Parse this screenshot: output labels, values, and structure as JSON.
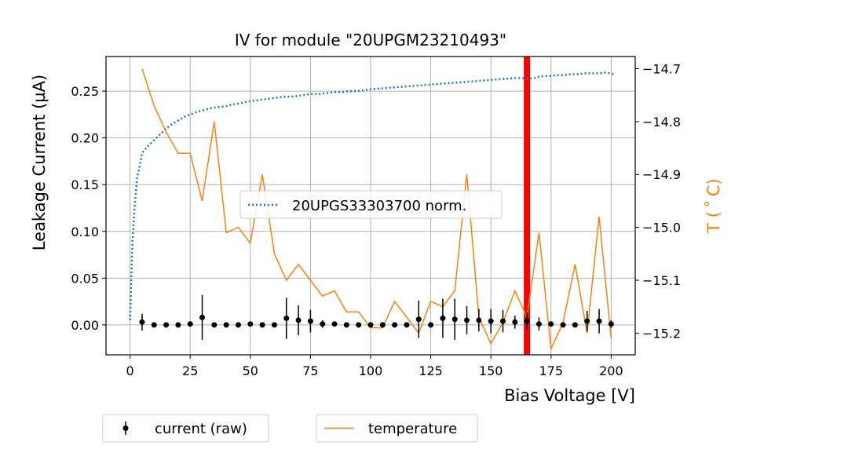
{
  "chart_data": {
    "type": "line",
    "title": "IV for module \"20UPGM23210493\"",
    "xlabel": "Bias Voltage [V]",
    "ylabel": "Leakage Current (µA)",
    "y2label": "T ($^\\circ$C)",
    "y2label_display": "T ( ˚ C)",
    "xlim": [
      -10,
      210
    ],
    "ylim": [
      -0.032,
      0.287
    ],
    "y2lim": [
      -15.241,
      -14.677
    ],
    "x_ticks": [
      0,
      25,
      50,
      75,
      100,
      125,
      150,
      175,
      200
    ],
    "x_tick_labels": [
      "0",
      "25",
      "50",
      "75",
      "100",
      "125",
      "150",
      "175",
      "200"
    ],
    "y_ticks": [
      0.0,
      0.05,
      0.1,
      0.15,
      0.2,
      0.25
    ],
    "y_tick_labels": [
      "0.00",
      "0.05",
      "0.10",
      "0.15",
      "0.20",
      "0.25"
    ],
    "y2_ticks": [
      -14.7,
      -14.8,
      -14.9,
      -15.0,
      -15.1,
      -15.2
    ],
    "y2_tick_labels": [
      "−14.7",
      "−14.8",
      "−14.9",
      "−15.0",
      "−15.1",
      "−15.2"
    ],
    "grid": true,
    "vertical_line": {
      "x": 165,
      "color": "#ff0000"
    },
    "colors": {
      "norm": "#1f77b4",
      "temperature": "#ff7f0e",
      "current": "#000000",
      "ref_line": "#ff0000",
      "y2_axis_label": "#ff7f0e"
    },
    "legends": {
      "inside": {
        "placement": "center",
        "entries": [
          {
            "label": "20UPGS33303700 norm.",
            "style": "dotted",
            "color": "#1f77b4"
          }
        ]
      },
      "below": [
        {
          "label": "current (raw)",
          "style": "errorbar-point",
          "color": "#000000"
        },
        {
          "label": "temperature",
          "style": "line",
          "color": "#ff7f0e"
        }
      ]
    },
    "series": [
      {
        "name": "20UPGS33303700 norm.",
        "axis": "left",
        "style": "dotted",
        "x": [
          0,
          1,
          2,
          3,
          4,
          5,
          7,
          9,
          11,
          13,
          15,
          17,
          19,
          21,
          23,
          25,
          28,
          31,
          34,
          37,
          40,
          43,
          46,
          49,
          52,
          55,
          58,
          61,
          64,
          67,
          70,
          73,
          76,
          79,
          82,
          85,
          88,
          91,
          94,
          97,
          100,
          105,
          110,
          115,
          120,
          125,
          130,
          135,
          140,
          145,
          150,
          155,
          160,
          163,
          165,
          168,
          171,
          174,
          177,
          180,
          183,
          186,
          189,
          192,
          195,
          198,
          201
        ],
        "y": [
          0.005,
          0.09,
          0.13,
          0.158,
          0.17,
          0.184,
          0.19,
          0.195,
          0.2,
          0.205,
          0.21,
          0.214,
          0.217,
          0.22,
          0.223,
          0.225,
          0.228,
          0.23,
          0.232,
          0.233,
          0.234,
          0.236,
          0.237,
          0.239,
          0.24,
          0.241,
          0.242,
          0.243,
          0.244,
          0.244,
          0.245,
          0.246,
          0.247,
          0.247,
          0.248,
          0.249,
          0.249,
          0.25,
          0.25,
          0.251,
          0.252,
          0.253,
          0.254,
          0.255,
          0.256,
          0.257,
          0.258,
          0.259,
          0.26,
          0.261,
          0.262,
          0.263,
          0.264,
          0.264,
          0.263,
          0.264,
          0.266,
          0.266,
          0.267,
          0.267,
          0.268,
          0.268,
          0.269,
          0.269,
          0.269,
          0.27,
          0.268
        ]
      },
      {
        "name": "current (raw)",
        "axis": "left",
        "style": "errorbar",
        "x": [
          5,
          10,
          15,
          20,
          25,
          30,
          35,
          40,
          45,
          50,
          55,
          60,
          65,
          70,
          75,
          80,
          85,
          90,
          95,
          100,
          105,
          110,
          115,
          120,
          125,
          130,
          135,
          140,
          145,
          150,
          155,
          160,
          165,
          170,
          175,
          180,
          185,
          190,
          195,
          200
        ],
        "y": [
          0.003,
          0.0,
          0.0,
          0.0,
          0.001,
          0.008,
          0.0,
          0.0,
          0.0,
          0.001,
          0.0,
          0.0,
          0.007,
          0.005,
          0.004,
          0.001,
          0.001,
          0.0,
          0.0,
          0.0,
          0.0,
          0.0,
          0.0,
          0.006,
          0.0,
          0.007,
          0.006,
          0.005,
          0.005,
          0.004,
          0.004,
          0.003,
          0.004,
          0.001,
          0.001,
          0.0,
          0.0,
          0.004,
          0.004,
          0.001
        ],
        "yerr": [
          0.009,
          0.001,
          0.001,
          0.001,
          0.002,
          0.024,
          0.001,
          0.001,
          0.001,
          0.002,
          0.001,
          0.001,
          0.022,
          0.016,
          0.012,
          0.004,
          0.002,
          0.001,
          0.001,
          0.001,
          0.001,
          0.001,
          0.001,
          0.02,
          0.002,
          0.021,
          0.022,
          0.015,
          0.012,
          0.013,
          0.012,
          0.007,
          0.009,
          0.007,
          0.002,
          0.001,
          0.001,
          0.011,
          0.013,
          0.004
        ]
      },
      {
        "name": "temperature",
        "axis": "right",
        "style": "line",
        "x": [
          5,
          10,
          15,
          20,
          25,
          30,
          35,
          40,
          45,
          50,
          55,
          60,
          65,
          70,
          75,
          80,
          85,
          90,
          95,
          100,
          105,
          110,
          115,
          120,
          125,
          130,
          135,
          140,
          145,
          150,
          155,
          160,
          165,
          170,
          175,
          180,
          185,
          190,
          195,
          200
        ],
        "y": [
          -14.7,
          -14.77,
          -14.82,
          -14.86,
          -14.86,
          -14.95,
          -14.8,
          -15.01,
          -15.0,
          -15.03,
          -14.9,
          -15.05,
          -15.1,
          -15.07,
          -15.1,
          -15.13,
          -15.12,
          -15.16,
          -15.16,
          -15.19,
          -15.19,
          -15.14,
          -15.17,
          -15.2,
          -15.14,
          -15.15,
          -15.12,
          -14.9,
          -15.17,
          -15.22,
          -15.18,
          -15.12,
          -15.17,
          -15.01,
          -15.23,
          -15.18,
          -15.07,
          -15.2,
          -14.98,
          -15.21
        ]
      }
    ]
  }
}
